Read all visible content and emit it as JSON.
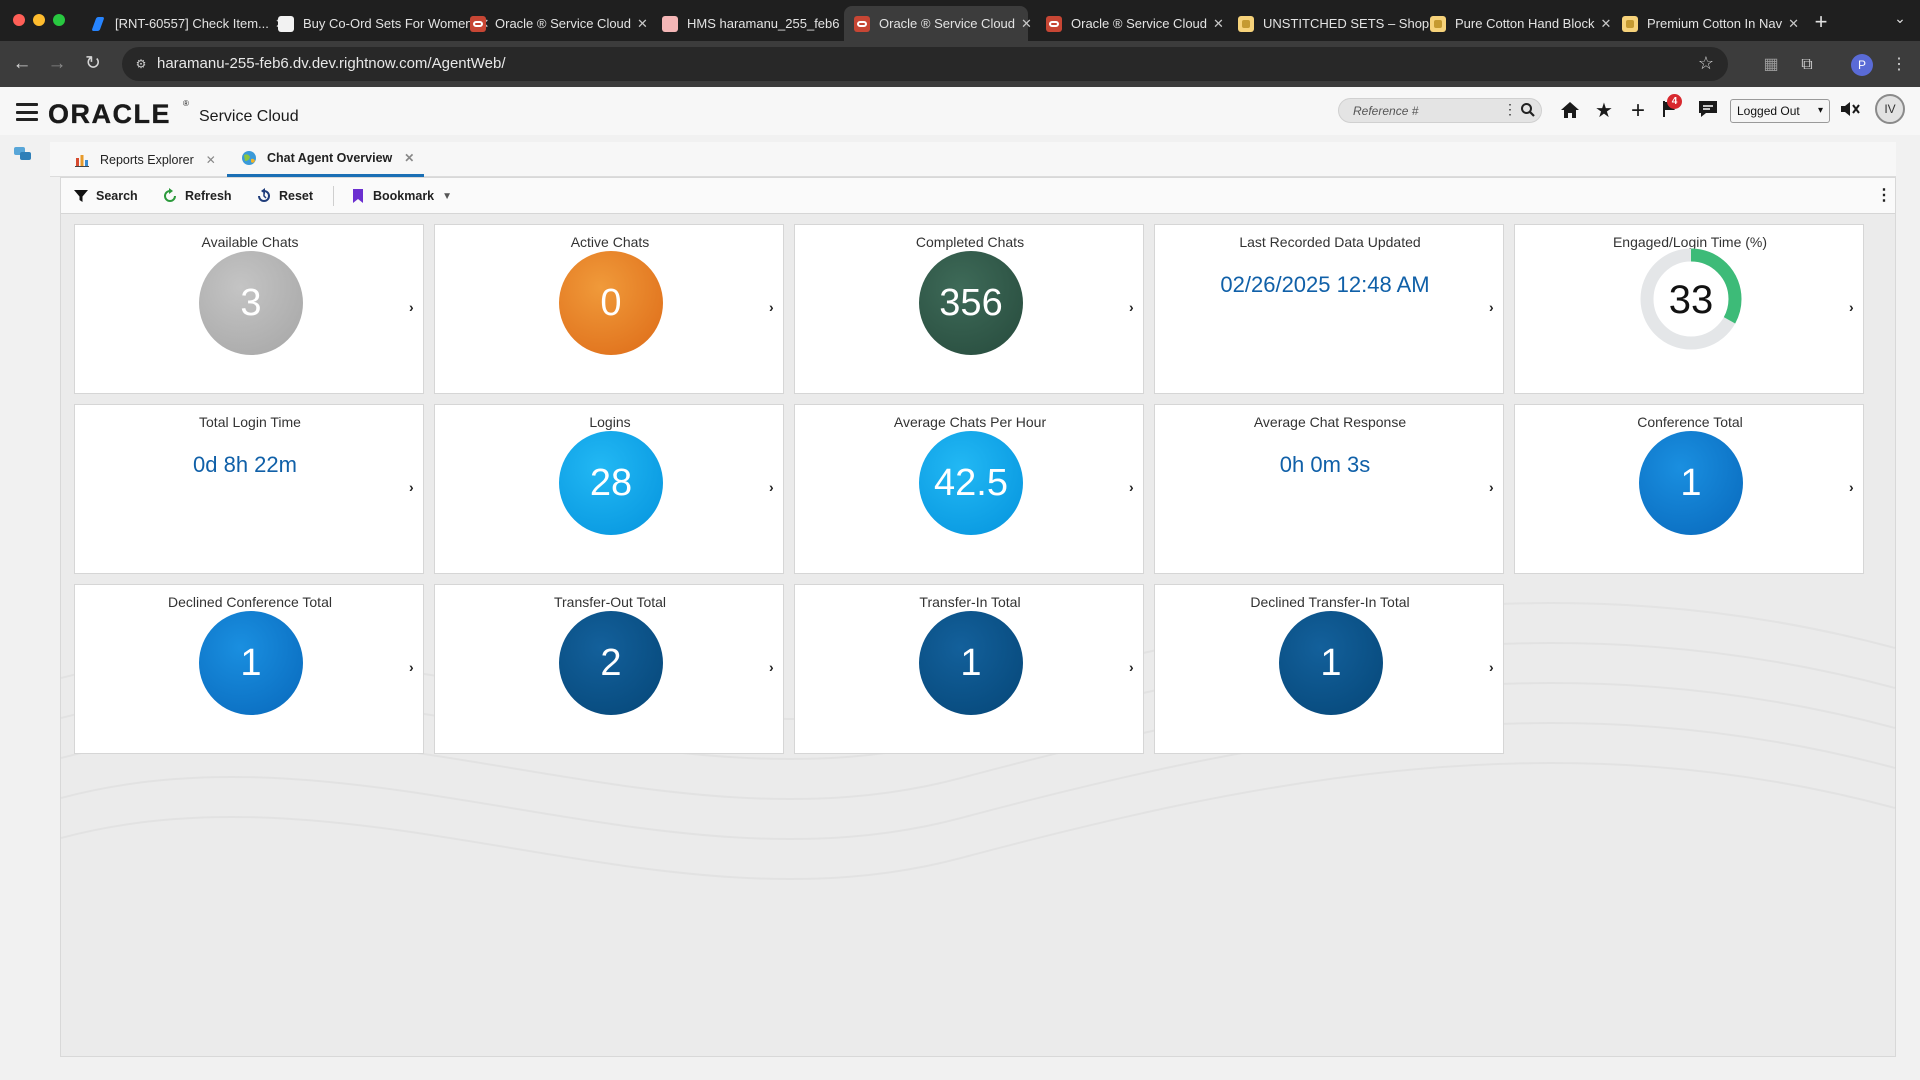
{
  "browser": {
    "tabs": [
      {
        "title": "[RNT-60557] Check Item...",
        "icon": "jira-icon"
      },
      {
        "title": "Buy Co-Ord Sets For Women",
        "icon": "page-icon"
      },
      {
        "title": "Oracle ® Service Cloud",
        "icon": "oracle-icon"
      },
      {
        "title": "HMS haramanu_255_feb6",
        "icon": "hms-icon"
      },
      {
        "title": "Oracle ® Service Cloud",
        "icon": "oracle-icon"
      },
      {
        "title": "Oracle ® Service Cloud",
        "icon": "oracle-icon"
      },
      {
        "title": "UNSTITCHED SETS – Shop",
        "icon": "shop-icon"
      },
      {
        "title": "Pure Cotton Hand Block",
        "icon": "shop-icon"
      },
      {
        "title": "Premium Cotton In Nav",
        "icon": "shop-icon"
      }
    ],
    "active_tab_index": 4,
    "url": "haramanu-255-feb6.dv.dev.rightnow.com/AgentWeb/",
    "profile_initial": "P"
  },
  "app": {
    "logo": "ORACLE",
    "logo_reg": "®",
    "product": "Service Cloud",
    "search_placeholder": "Reference #",
    "notification_count": "4",
    "status": "Logged Out",
    "user_initials": "IV"
  },
  "workspace_tabs": [
    {
      "label": "Reports Explorer",
      "icon": "bar-chart-icon",
      "active": false
    },
    {
      "label": "Chat Agent Overview",
      "icon": "dashboard-globe-icon",
      "active": true
    }
  ],
  "toolbar": {
    "search": "Search",
    "refresh": "Refresh",
    "reset": "Reset",
    "bookmark": "Bookmark"
  },
  "tiles": [
    {
      "title": "Available Chats",
      "value": "3",
      "kind": "circle",
      "color": "#b5b5b5"
    },
    {
      "title": "Active Chats",
      "value": "0",
      "kind": "circle",
      "color": "#e47a24"
    },
    {
      "title": "Completed Chats",
      "value": "356",
      "kind": "circle",
      "color": "#2f5a49"
    },
    {
      "title": "Last Recorded Data Updated",
      "value": "02/26/2025 12:48 AM",
      "kind": "text"
    },
    {
      "title": "Engaged/Login Time (%)",
      "value": "33",
      "kind": "donut",
      "percent": 33,
      "color": "#3dbb78"
    },
    {
      "title": "Total Login Time",
      "value": "0d 8h 22m",
      "kind": "text"
    },
    {
      "title": "Logins",
      "value": "28",
      "kind": "circle",
      "color": "#0ea5ec"
    },
    {
      "title": "Average Chats Per Hour",
      "value": "42.5",
      "kind": "circle",
      "color": "#0ea5ec"
    },
    {
      "title": "Average Chat Response",
      "value": "0h 0m 3s",
      "kind": "text"
    },
    {
      "title": "Conference Total",
      "value": "1",
      "kind": "circle",
      "color": "#0b7bd0"
    },
    {
      "title": "Declined Conference Total",
      "value": "1",
      "kind": "circle",
      "color": "#0b7bd0"
    },
    {
      "title": "Transfer-Out Total",
      "value": "2",
      "kind": "circle",
      "color": "#0a5389"
    },
    {
      "title": "Transfer-In Total",
      "value": "1",
      "kind": "circle",
      "color": "#0a5389"
    },
    {
      "title": "Declined Transfer-In Total",
      "value": "1",
      "kind": "circle",
      "color": "#0a5389"
    }
  ]
}
